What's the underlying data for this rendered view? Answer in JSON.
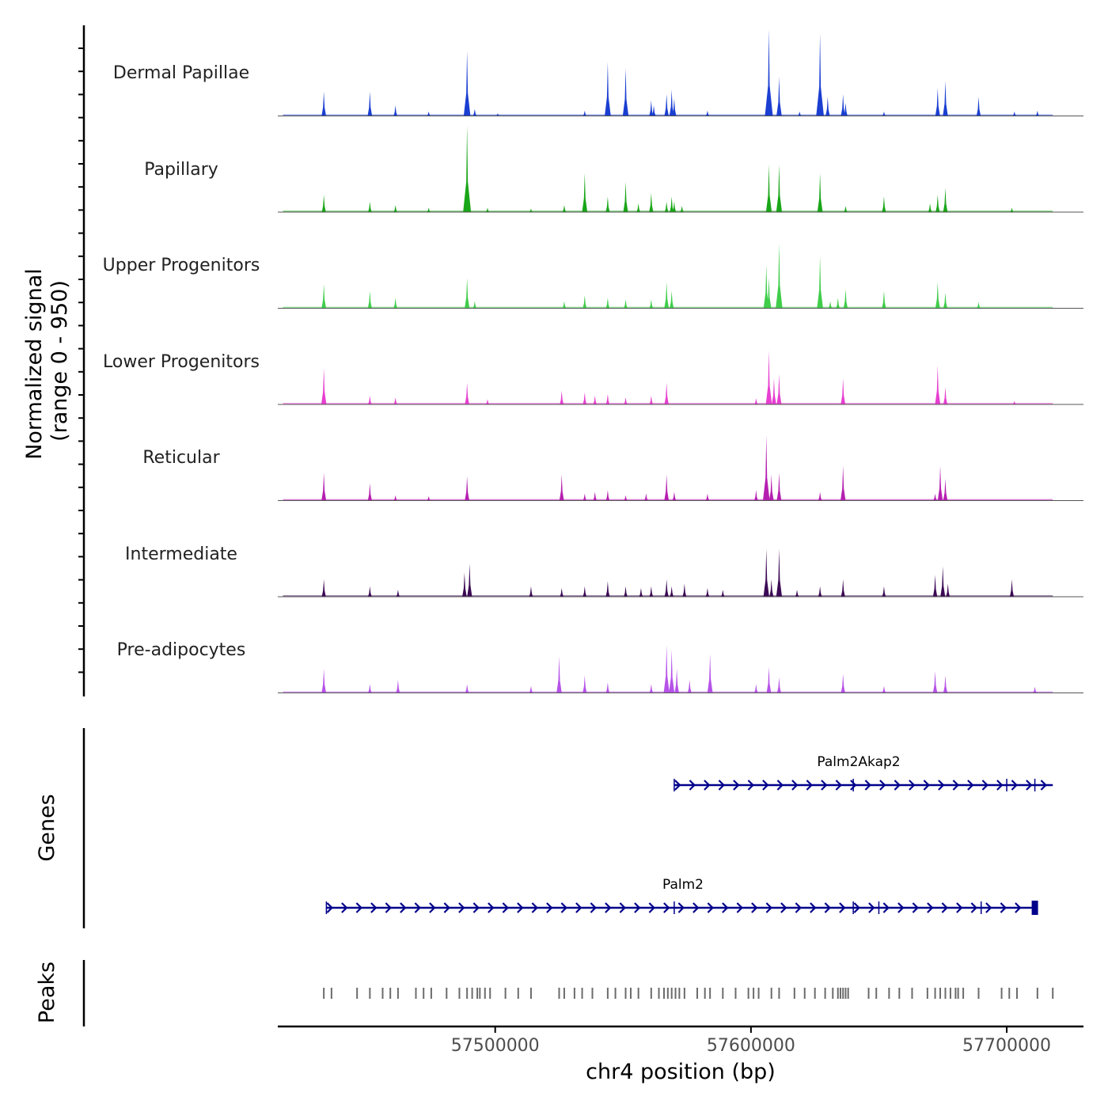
{
  "chart_data": {
    "type": "genome-track",
    "chromosome": "chr4",
    "xlabel": "chr4 position (bp)",
    "xlim": [
      57415000,
      57730000
    ],
    "xticks": [
      {
        "value": 57500000,
        "label": "57500000"
      },
      {
        "value": 57600000,
        "label": "57600000"
      },
      {
        "value": 57700000,
        "label": "57700000"
      }
    ],
    "coverage": {
      "ylabel_line1": "Normalized signal",
      "ylabel_line2": "(range 0 - 950)",
      "ymax": 950,
      "tracks": [
        {
          "name": "Dermal Papillae",
          "color": "#1b3fd1",
          "peaks": [
            [
              57433000,
              0.28
            ],
            [
              57451000,
              0.28
            ],
            [
              57461000,
              0.12
            ],
            [
              57474000,
              0.05
            ],
            [
              57489000,
              0.75
            ],
            [
              57492000,
              0.08
            ],
            [
              57501000,
              0.03
            ],
            [
              57535000,
              0.06
            ],
            [
              57544000,
              0.62
            ],
            [
              57551000,
              0.55
            ],
            [
              57561000,
              0.18
            ],
            [
              57562000,
              0.12
            ],
            [
              57567000,
              0.25
            ],
            [
              57569000,
              0.3
            ],
            [
              57570000,
              0.2
            ],
            [
              57583000,
              0.06
            ],
            [
              57607000,
              1.0
            ],
            [
              57611000,
              0.45
            ],
            [
              57619000,
              0.05
            ],
            [
              57627000,
              0.95
            ],
            [
              57630000,
              0.22
            ],
            [
              57636000,
              0.25
            ],
            [
              57637000,
              0.15
            ],
            [
              57652000,
              0.05
            ],
            [
              57673000,
              0.32
            ],
            [
              57676000,
              0.4
            ],
            [
              57689000,
              0.22
            ],
            [
              57703000,
              0.05
            ],
            [
              57712000,
              0.06
            ]
          ]
        },
        {
          "name": "Papillary",
          "color": "#19a618",
          "peaks": [
            [
              57433000,
              0.2
            ],
            [
              57451000,
              0.12
            ],
            [
              57461000,
              0.08
            ],
            [
              57474000,
              0.05
            ],
            [
              57489000,
              1.0
            ],
            [
              57497000,
              0.05
            ],
            [
              57514000,
              0.04
            ],
            [
              57527000,
              0.08
            ],
            [
              57535000,
              0.45
            ],
            [
              57544000,
              0.18
            ],
            [
              57551000,
              0.35
            ],
            [
              57556000,
              0.1
            ],
            [
              57561000,
              0.22
            ],
            [
              57567000,
              0.12
            ],
            [
              57569000,
              0.18
            ],
            [
              57570000,
              0.12
            ],
            [
              57573000,
              0.07
            ],
            [
              57607000,
              0.55
            ],
            [
              57611000,
              0.55
            ],
            [
              57627000,
              0.45
            ],
            [
              57637000,
              0.07
            ],
            [
              57652000,
              0.18
            ],
            [
              57670000,
              0.1
            ],
            [
              57673000,
              0.2
            ],
            [
              57676000,
              0.28
            ],
            [
              57702000,
              0.05
            ]
          ]
        },
        {
          "name": "Upper Progenitors",
          "color": "#3fcd4a",
          "peaks": [
            [
              57433000,
              0.28
            ],
            [
              57451000,
              0.2
            ],
            [
              57461000,
              0.12
            ],
            [
              57489000,
              0.35
            ],
            [
              57492000,
              0.08
            ],
            [
              57527000,
              0.08
            ],
            [
              57535000,
              0.15
            ],
            [
              57544000,
              0.12
            ],
            [
              57551000,
              0.1
            ],
            [
              57561000,
              0.1
            ],
            [
              57567000,
              0.3
            ],
            [
              57569000,
              0.2
            ],
            [
              57606000,
              0.5
            ],
            [
              57607000,
              0.35
            ],
            [
              57611000,
              0.75
            ],
            [
              57627000,
              0.6
            ],
            [
              57631000,
              0.08
            ],
            [
              57634000,
              0.12
            ],
            [
              57637000,
              0.22
            ],
            [
              57652000,
              0.2
            ],
            [
              57673000,
              0.3
            ],
            [
              57676000,
              0.18
            ],
            [
              57689000,
              0.07
            ]
          ]
        },
        {
          "name": "Lower Progenitors",
          "color": "#e63fd1",
          "peaks": [
            [
              57433000,
              0.42
            ],
            [
              57451000,
              0.1
            ],
            [
              57461000,
              0.08
            ],
            [
              57489000,
              0.25
            ],
            [
              57497000,
              0.06
            ],
            [
              57526000,
              0.16
            ],
            [
              57535000,
              0.14
            ],
            [
              57539000,
              0.1
            ],
            [
              57544000,
              0.12
            ],
            [
              57551000,
              0.08
            ],
            [
              57561000,
              0.1
            ],
            [
              57567000,
              0.25
            ],
            [
              57602000,
              0.07
            ],
            [
              57607000,
              0.62
            ],
            [
              57609000,
              0.3
            ],
            [
              57611000,
              0.35
            ],
            [
              57636000,
              0.3
            ],
            [
              57673000,
              0.45
            ],
            [
              57676000,
              0.2
            ],
            [
              57703000,
              0.04
            ]
          ]
        },
        {
          "name": "Reticular",
          "color": "#b51fb0",
          "peaks": [
            [
              57433000,
              0.32
            ],
            [
              57451000,
              0.2
            ],
            [
              57461000,
              0.06
            ],
            [
              57474000,
              0.05
            ],
            [
              57489000,
              0.28
            ],
            [
              57526000,
              0.3
            ],
            [
              57535000,
              0.08
            ],
            [
              57539000,
              0.1
            ],
            [
              57544000,
              0.12
            ],
            [
              57551000,
              0.06
            ],
            [
              57559000,
              0.08
            ],
            [
              57567000,
              0.3
            ],
            [
              57570000,
              0.1
            ],
            [
              57583000,
              0.08
            ],
            [
              57602000,
              0.12
            ],
            [
              57606000,
              0.75
            ],
            [
              57608000,
              0.3
            ],
            [
              57611000,
              0.32
            ],
            [
              57627000,
              0.1
            ],
            [
              57636000,
              0.4
            ],
            [
              57672000,
              0.08
            ],
            [
              57674000,
              0.4
            ],
            [
              57676000,
              0.25
            ]
          ]
        },
        {
          "name": "Intermediate",
          "color": "#3c0a55",
          "peaks": [
            [
              57433000,
              0.2
            ],
            [
              57451000,
              0.12
            ],
            [
              57462000,
              0.08
            ],
            [
              57488000,
              0.28
            ],
            [
              57490000,
              0.38
            ],
            [
              57514000,
              0.12
            ],
            [
              57526000,
              0.1
            ],
            [
              57535000,
              0.12
            ],
            [
              57544000,
              0.18
            ],
            [
              57551000,
              0.12
            ],
            [
              57557000,
              0.1
            ],
            [
              57561000,
              0.12
            ],
            [
              57567000,
              0.2
            ],
            [
              57569000,
              0.12
            ],
            [
              57574000,
              0.15
            ],
            [
              57583000,
              0.1
            ],
            [
              57589000,
              0.08
            ],
            [
              57606000,
              0.55
            ],
            [
              57608000,
              0.2
            ],
            [
              57611000,
              0.55
            ],
            [
              57618000,
              0.08
            ],
            [
              57627000,
              0.12
            ],
            [
              57636000,
              0.2
            ],
            [
              57652000,
              0.12
            ],
            [
              57672000,
              0.25
            ],
            [
              57675000,
              0.35
            ],
            [
              57677000,
              0.15
            ],
            [
              57702000,
              0.2
            ]
          ]
        },
        {
          "name": "Pre-adipocytes",
          "color": "#b652e8",
          "peaks": [
            [
              57433000,
              0.28
            ],
            [
              57451000,
              0.1
            ],
            [
              57462000,
              0.15
            ],
            [
              57489000,
              0.1
            ],
            [
              57514000,
              0.08
            ],
            [
              57525000,
              0.42
            ],
            [
              57535000,
              0.2
            ],
            [
              57544000,
              0.12
            ],
            [
              57561000,
              0.1
            ],
            [
              57567000,
              0.55
            ],
            [
              57569000,
              0.5
            ],
            [
              57571000,
              0.28
            ],
            [
              57576000,
              0.15
            ],
            [
              57584000,
              0.45
            ],
            [
              57602000,
              0.1
            ],
            [
              57607000,
              0.3
            ],
            [
              57611000,
              0.18
            ],
            [
              57636000,
              0.22
            ],
            [
              57652000,
              0.08
            ],
            [
              57672000,
              0.25
            ],
            [
              57676000,
              0.2
            ],
            [
              57711000,
              0.07
            ]
          ]
        }
      ]
    },
    "genes": {
      "ylabel": "Genes",
      "items": [
        {
          "name": "Palm2Akap2",
          "start": 57570000,
          "end": 57718000,
          "color": "#00008b",
          "exons": [
            57570000,
            57640000,
            57700000,
            57711000
          ]
        },
        {
          "name": "Palm2",
          "start": 57434000,
          "end": 57711000,
          "color": "#00008b",
          "exons": [
            57434000,
            57570000,
            57640000,
            57650000,
            57690000
          ]
        }
      ]
    },
    "peaks_track": {
      "ylabel": "Peaks",
      "color": "#6b6b6b",
      "positions": [
        57433000,
        57436000,
        57446000,
        57451000,
        57456000,
        57459000,
        57462000,
        57469000,
        57472000,
        57475000,
        57481000,
        57486000,
        57489000,
        57491000,
        57493000,
        57494000,
        57496000,
        57498000,
        57504000,
        57509000,
        57514000,
        57525000,
        57527000,
        57531000,
        57534000,
        57538000,
        57544000,
        57547000,
        57551000,
        57553000,
        57556000,
        57561000,
        57564000,
        57566000,
        57567500,
        57569000,
        57570500,
        57572000,
        57574000,
        57579000,
        57582000,
        57584000,
        57589000,
        57594000,
        57599000,
        57601000,
        57603000,
        57608000,
        57611000,
        57617000,
        57621000,
        57625000,
        57629000,
        57632000,
        57634000,
        57635000,
        57636000,
        57637000,
        57638000,
        57646000,
        57649000,
        57654000,
        57658000,
        57663000,
        57669000,
        57672000,
        57674000,
        57676000,
        57678000,
        57680000,
        57681000,
        57683000,
        57689000,
        57698000,
        57701000,
        57704000,
        57712000,
        57718000
      ]
    }
  }
}
